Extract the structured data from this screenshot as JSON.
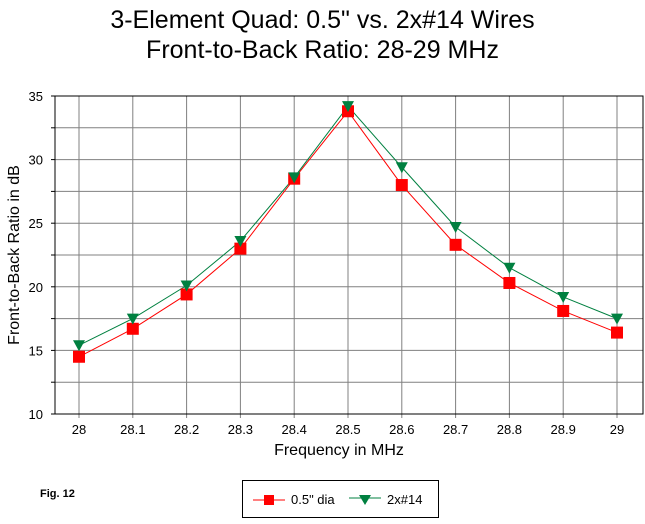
{
  "chart_data": {
    "type": "line",
    "title": "3-Element Quad:  0.5\" vs. 2x#14 Wires",
    "subtitle": "Front-to-Back Ratio:  28-29 MHz",
    "xlabel": "Frequency in MHz",
    "ylabel": "Front-to-Back Ratio in dB",
    "x": [
      28,
      28.1,
      28.2,
      28.3,
      28.4,
      28.5,
      28.6,
      28.7,
      28.8,
      28.9,
      29
    ],
    "x_tick_labels": [
      "28",
      "28.1",
      "28.2",
      "28.3",
      "28.4",
      "28.5",
      "28.6",
      "28.7",
      "28.8",
      "28.9",
      "29"
    ],
    "y_tick_labels": [
      "10",
      "15",
      "20",
      "25",
      "30",
      "35"
    ],
    "ylim": [
      10,
      35
    ],
    "grid": true,
    "legend_position": "bottom",
    "series": [
      {
        "name": "0.5\" dia",
        "color": "#ff0000",
        "marker": "square",
        "values": [
          14.5,
          16.7,
          19.4,
          23.0,
          28.5,
          33.8,
          28.0,
          23.3,
          20.3,
          18.1,
          16.4
        ]
      },
      {
        "name": "2x#14",
        "color": "#008040",
        "marker": "triangle-down",
        "values": [
          15.4,
          17.5,
          20.1,
          23.6,
          28.6,
          34.2,
          29.4,
          24.7,
          21.5,
          19.2,
          17.5
        ]
      }
    ]
  },
  "figure_label": "Fig. 12"
}
